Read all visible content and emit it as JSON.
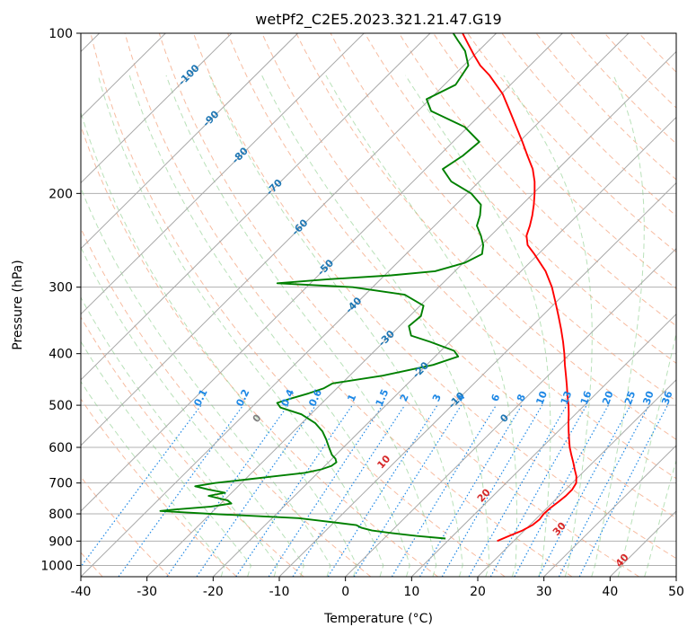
{
  "chart_data": {
    "type": "line",
    "title": "wetPf2_C2E5.2023.321.21.47.G19",
    "xlabel": "Temperature (°C)",
    "ylabel": "Pressure (hPa)",
    "xlim": [
      -40,
      50
    ],
    "ylim": [
      1050,
      100
    ],
    "y_scale": "log",
    "skew": "skew-T log-p",
    "grid": true,
    "x_ticks": [
      -40,
      -30,
      -20,
      -10,
      0,
      10,
      20,
      30,
      40,
      50
    ],
    "y_ticks": [
      100,
      200,
      300,
      400,
      500,
      600,
      700,
      800,
      900,
      1000
    ],
    "colors": {
      "temperature": "#ff0000",
      "dewpoint": "#008000",
      "isotherm_label": "#1f77b4",
      "mixing_ratio": "#1e88e5",
      "moist_adiabat": "#d62728",
      "moist_zero": "#808080"
    },
    "series": [
      {
        "name": "",
        "color": "#ff0000",
        "points": [
          [
            900,
            17.5
          ],
          [
            880,
            18.5
          ],
          [
            860,
            19.7
          ],
          [
            840,
            20.4
          ],
          [
            820,
            20.6
          ],
          [
            800,
            20.4
          ],
          [
            780,
            20.5
          ],
          [
            760,
            20.8
          ],
          [
            740,
            21.0
          ],
          [
            720,
            21.0
          ],
          [
            700,
            20.6
          ],
          [
            680,
            19.6
          ],
          [
            660,
            18.3
          ],
          [
            640,
            17.0
          ],
          [
            620,
            15.6
          ],
          [
            600,
            14.2
          ],
          [
            580,
            12.9
          ],
          [
            560,
            11.6
          ],
          [
            540,
            10.3
          ],
          [
            520,
            9.0
          ],
          [
            500,
            7.6
          ],
          [
            480,
            6.0
          ],
          [
            460,
            4.4
          ],
          [
            440,
            2.7
          ],
          [
            420,
            0.9
          ],
          [
            400,
            -0.9
          ],
          [
            380,
            -2.9
          ],
          [
            360,
            -5.1
          ],
          [
            340,
            -7.5
          ],
          [
            320,
            -10.1
          ],
          [
            300,
            -12.9
          ],
          [
            280,
            -16.3
          ],
          [
            260,
            -20.6
          ],
          [
            250,
            -23.0
          ],
          [
            240,
            -24.6
          ],
          [
            230,
            -25.6
          ],
          [
            220,
            -26.8
          ],
          [
            210,
            -28.2
          ],
          [
            200,
            -29.8
          ],
          [
            190,
            -31.6
          ],
          [
            180,
            -33.8
          ],
          [
            170,
            -36.6
          ],
          [
            160,
            -39.5
          ],
          [
            150,
            -42.7
          ],
          [
            140,
            -46.1
          ],
          [
            130,
            -49.8
          ],
          [
            120,
            -54.6
          ],
          [
            115,
            -57.5
          ],
          [
            110,
            -60.0
          ],
          [
            105,
            -62.5
          ],
          [
            100,
            -65.1
          ]
        ]
      },
      {
        "name": "",
        "color": "#008000",
        "points": [
          [
            890,
            9.3
          ],
          [
            880,
            4.5
          ],
          [
            870,
            0.5
          ],
          [
            860,
            -3.0
          ],
          [
            850,
            -5.0
          ],
          [
            840,
            -6.2
          ],
          [
            830,
            -10.0
          ],
          [
            825,
            -12.0
          ],
          [
            815,
            -16.0
          ],
          [
            800,
            -30.0
          ],
          [
            795,
            -34.0
          ],
          [
            790,
            -38.0
          ],
          [
            785,
            -36.0
          ],
          [
            775,
            -31.0
          ],
          [
            765,
            -28.4
          ],
          [
            755,
            -29.4
          ],
          [
            740,
            -33.0
          ],
          [
            730,
            -31.0
          ],
          [
            720,
            -34.0
          ],
          [
            710,
            -36.5
          ],
          [
            700,
            -34.0
          ],
          [
            690,
            -30.0
          ],
          [
            680,
            -26.0
          ],
          [
            670,
            -22.0
          ],
          [
            660,
            -20.0
          ],
          [
            650,
            -19.0
          ],
          [
            640,
            -18.8
          ],
          [
            630,
            -19.5
          ],
          [
            620,
            -20.6
          ],
          [
            600,
            -22.2
          ],
          [
            580,
            -23.8
          ],
          [
            560,
            -25.6
          ],
          [
            540,
            -28.0
          ],
          [
            520,
            -31.4
          ],
          [
            505,
            -35.6
          ],
          [
            495,
            -36.8
          ],
          [
            485,
            -35.3
          ],
          [
            475,
            -33.5
          ],
          [
            465,
            -32.0
          ],
          [
            455,
            -31.4
          ],
          [
            440,
            -25.0
          ],
          [
            420,
            -19.0
          ],
          [
            405,
            -16.5
          ],
          [
            395,
            -18.0
          ],
          [
            380,
            -23.0
          ],
          [
            370,
            -26.8
          ],
          [
            355,
            -28.6
          ],
          [
            340,
            -28.3
          ],
          [
            325,
            -29.5
          ],
          [
            310,
            -34.0
          ],
          [
            300,
            -43.0
          ],
          [
            295,
            -55.0
          ],
          [
            290,
            -48.0
          ],
          [
            285,
            -39.0
          ],
          [
            280,
            -33.0
          ],
          [
            270,
            -29.8
          ],
          [
            260,
            -28.5
          ],
          [
            250,
            -29.7
          ],
          [
            240,
            -31.5
          ],
          [
            230,
            -33.6
          ],
          [
            220,
            -34.7
          ],
          [
            210,
            -36.2
          ],
          [
            200,
            -39.4
          ],
          [
            190,
            -44.2
          ],
          [
            180,
            -47.4
          ],
          [
            170,
            -46.4
          ],
          [
            160,
            -46.0
          ],
          [
            150,
            -50.5
          ],
          [
            140,
            -58.0
          ],
          [
            133,
            -60.5
          ],
          [
            125,
            -58.3
          ],
          [
            115,
            -59.3
          ],
          [
            108,
            -62.0
          ],
          [
            103,
            -64.8
          ],
          [
            100,
            -66.5
          ]
        ]
      }
    ],
    "isotherm_labels": [
      "-100",
      "-90",
      "-80",
      "-70",
      "-60",
      "-50",
      "-40",
      "-30",
      "-20",
      "-10",
      "0"
    ],
    "isotherm_label_points": [
      [
        -100,
        120
      ],
      [
        -90,
        145
      ],
      [
        -80,
        170
      ],
      [
        -70,
        195
      ],
      [
        -60,
        232
      ],
      [
        -50,
        276
      ],
      [
        -40,
        325
      ],
      [
        -30,
        375
      ],
      [
        -20,
        430
      ],
      [
        -10,
        490
      ],
      [
        0,
        530
      ]
    ],
    "mixing_ratio_labels": [
      "0.1",
      "0.2",
      "0.4",
      "0.6",
      "1",
      "1.5",
      "2",
      "3",
      "4",
      "6",
      "8",
      "10",
      "13",
      "16",
      "20",
      "25",
      "30",
      "36"
    ],
    "mixing_ratio_values": [
      0.1,
      0.2,
      0.4,
      0.6,
      1,
      1.5,
      2,
      3,
      4,
      6,
      8,
      10,
      13,
      16,
      20,
      25,
      30,
      36
    ],
    "moist_adiabat_labels": [
      "10",
      "20",
      "30",
      "40"
    ],
    "moist_adiabat_values": [
      10,
      20,
      30,
      40
    ],
    "moist_adiabat_label_pressures": [
      640,
      740,
      855,
      980
    ],
    "moist_zero_label": "0",
    "moist_zero_label_pressure": 530
  }
}
